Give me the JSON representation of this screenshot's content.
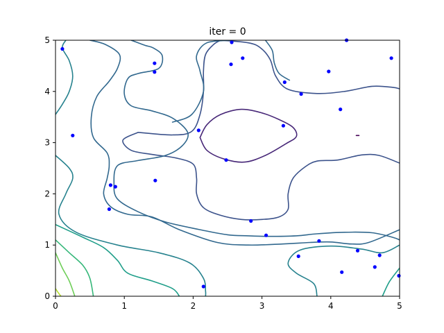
{
  "chart_data": {
    "type": "scatter",
    "title": "iter = 0",
    "xlabel": "",
    "ylabel": "",
    "xlim": [
      0,
      5
    ],
    "ylim": [
      0,
      5
    ],
    "x_ticks": [
      "0",
      "1",
      "2",
      "3",
      "4",
      "5"
    ],
    "y_ticks": [
      "0",
      "1",
      "2",
      "3",
      "4",
      "5"
    ],
    "grid": false,
    "legend": "none",
    "point_color": "#0000ff",
    "points": [
      {
        "x": 0.1,
        "y": 4.83
      },
      {
        "x": 0.25,
        "y": 3.14
      },
      {
        "x": 0.78,
        "y": 1.7
      },
      {
        "x": 0.8,
        "y": 2.17
      },
      {
        "x": 0.87,
        "y": 2.14
      },
      {
        "x": 1.44,
        "y": 4.55
      },
      {
        "x": 1.44,
        "y": 4.38
      },
      {
        "x": 1.45,
        "y": 2.26
      },
      {
        "x": 2.08,
        "y": 3.24
      },
      {
        "x": 2.15,
        "y": 0.19
      },
      {
        "x": 2.48,
        "y": 2.66
      },
      {
        "x": 2.55,
        "y": 4.53
      },
      {
        "x": 2.56,
        "y": 4.96
      },
      {
        "x": 2.72,
        "y": 4.65
      },
      {
        "x": 2.84,
        "y": 1.47
      },
      {
        "x": 3.06,
        "y": 1.19
      },
      {
        "x": 3.31,
        "y": 3.33
      },
      {
        "x": 3.33,
        "y": 4.18
      },
      {
        "x": 3.53,
        "y": 0.78
      },
      {
        "x": 3.57,
        "y": 3.95
      },
      {
        "x": 3.83,
        "y": 1.08
      },
      {
        "x": 3.97,
        "y": 4.39
      },
      {
        "x": 4.14,
        "y": 3.65
      },
      {
        "x": 4.16,
        "y": 0.47
      },
      {
        "x": 4.23,
        "y": 5.0
      },
      {
        "x": 4.39,
        "y": 0.89
      },
      {
        "x": 4.64,
        "y": 0.57
      },
      {
        "x": 4.71,
        "y": 0.8
      },
      {
        "x": 4.88,
        "y": 4.65
      },
      {
        "x": 4.99,
        "y": 0.4
      }
    ],
    "contours": [
      {
        "level": 1,
        "color": "#440154",
        "points": [
          [
            4.37,
            3.14
          ],
          [
            4.41,
            3.14
          ]
        ]
      },
      {
        "level": 2,
        "color": "#482878",
        "points": [
          [
            2.1,
            3.1
          ],
          [
            2.2,
            3.35
          ],
          [
            2.4,
            3.55
          ],
          [
            2.7,
            3.65
          ],
          [
            3.0,
            3.58
          ],
          [
            3.25,
            3.45
          ],
          [
            3.45,
            3.3
          ],
          [
            3.5,
            3.12
          ],
          [
            3.35,
            2.98
          ],
          [
            3.05,
            2.75
          ],
          [
            2.75,
            2.62
          ],
          [
            2.45,
            2.68
          ],
          [
            2.2,
            2.85
          ],
          [
            2.1,
            3.1
          ]
        ]
      },
      {
        "level": 3,
        "color": "#3b528b",
        "points": [
          [
            1.2,
            3.2
          ],
          [
            1.7,
            3.15
          ],
          [
            1.98,
            3.22
          ],
          [
            2.1,
            3.55
          ],
          [
            2.15,
            4.0
          ],
          [
            2.15,
            4.4
          ],
          [
            2.18,
            4.72
          ],
          [
            2.3,
            4.92
          ],
          [
            2.4,
            5.0
          ]
        ]
      },
      {
        "level": 3,
        "color": "#3b528b",
        "points": [
          [
            2.4,
            5.0
          ],
          [
            2.8,
            4.95
          ],
          [
            2.98,
            4.85
          ],
          [
            3.12,
            4.62
          ],
          [
            3.2,
            4.3
          ],
          [
            3.38,
            4.04
          ],
          [
            3.8,
            3.96
          ],
          [
            4.2,
            4.0
          ],
          [
            4.6,
            4.1
          ],
          [
            4.9,
            4.08
          ],
          [
            5.0,
            4.05
          ]
        ]
      },
      {
        "level": 3,
        "color": "#3b528b",
        "points": [
          [
            5.0,
            2.6
          ],
          [
            4.7,
            2.75
          ],
          [
            4.45,
            2.76
          ],
          [
            4.1,
            2.66
          ],
          [
            3.8,
            2.64
          ],
          [
            3.62,
            2.52
          ],
          [
            3.45,
            2.3
          ],
          [
            3.38,
            2.0
          ],
          [
            3.38,
            1.7
          ],
          [
            3.25,
            1.55
          ],
          [
            3.0,
            1.5
          ],
          [
            2.7,
            1.5
          ],
          [
            2.4,
            1.58
          ],
          [
            2.15,
            1.73
          ],
          [
            2.05,
            2.0
          ],
          [
            2.05,
            2.3
          ],
          [
            2.0,
            2.58
          ],
          [
            1.75,
            2.7
          ],
          [
            1.4,
            2.77
          ],
          [
            1.1,
            2.85
          ],
          [
            0.98,
            3.05
          ],
          [
            1.2,
            3.2
          ]
        ]
      },
      {
        "level": 4,
        "color": "#31688e",
        "points": [
          [
            0.5,
            5.0
          ],
          [
            0.72,
            4.92
          ],
          [
            0.93,
            4.72
          ],
          [
            0.9,
            4.45
          ],
          [
            0.78,
            4.2
          ],
          [
            0.6,
            3.9
          ],
          [
            0.52,
            3.5
          ],
          [
            0.55,
            3.1
          ],
          [
            0.75,
            2.8
          ],
          [
            0.78,
            2.55
          ],
          [
            0.75,
            2.3
          ],
          [
            0.7,
            2.0
          ],
          [
            0.8,
            1.75
          ],
          [
            1.05,
            1.6
          ],
          [
            1.4,
            1.55
          ],
          [
            1.8,
            1.3
          ],
          [
            2.35,
            1.05
          ],
          [
            2.8,
            1.0
          ],
          [
            3.3,
            1.02
          ],
          [
            3.7,
            1.05
          ],
          [
            4.0,
            1.06
          ],
          [
            4.3,
            1.02
          ],
          [
            4.55,
            1.05
          ],
          [
            5.0,
            1.3
          ]
        ]
      },
      {
        "level": 4,
        "color": "#31688e",
        "points": [
          [
            1.1,
            5.0
          ],
          [
            1.3,
            4.9
          ],
          [
            1.42,
            4.85
          ],
          [
            1.55,
            4.7
          ],
          [
            1.5,
            4.45
          ],
          [
            1.2,
            4.35
          ],
          [
            1.05,
            4.25
          ],
          [
            1.0,
            3.95
          ],
          [
            1.1,
            3.72
          ],
          [
            1.4,
            3.62
          ],
          [
            1.7,
            3.48
          ],
          [
            1.92,
            3.2
          ],
          [
            1.85,
            2.95
          ],
          [
            1.6,
            2.75
          ],
          [
            1.2,
            2.65
          ],
          [
            0.9,
            2.55
          ],
          [
            0.85,
            2.2
          ],
          [
            0.9,
            1.9
          ],
          [
            1.2,
            1.65
          ],
          [
            1.6,
            1.45
          ],
          [
            2.1,
            1.3
          ],
          [
            2.5,
            1.2
          ],
          [
            2.8,
            1.18
          ],
          [
            3.1,
            1.17
          ],
          [
            3.5,
            1.18
          ],
          [
            3.8,
            1.22
          ],
          [
            4.2,
            1.25
          ],
          [
            4.6,
            1.24
          ],
          [
            4.9,
            1.15
          ],
          [
            5.0,
            1.1
          ]
        ]
      },
      {
        "level": 4,
        "color": "#31688e",
        "points": [
          [
            2.55,
            5.0
          ],
          [
            2.2,
            4.95
          ],
          [
            2.05,
            4.7
          ],
          [
            2.1,
            4.4
          ],
          [
            2.15,
            4.0
          ],
          [
            1.98,
            3.55
          ],
          [
            1.7,
            3.4
          ]
        ]
      },
      {
        "level": 4,
        "color": "#31688e",
        "points": [
          [
            3.05,
            5.0
          ],
          [
            3.15,
            4.8
          ],
          [
            3.18,
            4.55
          ],
          [
            3.25,
            4.35
          ],
          [
            3.4,
            4.22
          ]
        ]
      },
      {
        "level": 5,
        "color": "#26828e",
        "points": [
          [
            0.15,
            5.0
          ],
          [
            0.1,
            4.85
          ],
          [
            0.2,
            4.6
          ],
          [
            0.25,
            4.3
          ],
          [
            0.2,
            4.0
          ],
          [
            0.1,
            3.75
          ],
          [
            0.0,
            3.55
          ]
        ]
      },
      {
        "level": 5,
        "color": "#26828e",
        "points": [
          [
            0.0,
            2.75
          ],
          [
            0.2,
            2.5
          ],
          [
            0.25,
            2.3
          ],
          [
            0.15,
            2.0
          ],
          [
            0.05,
            1.6
          ],
          [
            0.3,
            1.25
          ],
          [
            0.9,
            1.0
          ],
          [
            1.5,
            0.85
          ],
          [
            1.95,
            0.65
          ],
          [
            2.15,
            0.35
          ],
          [
            2.18,
            0.1
          ],
          [
            2.18,
            0.0
          ]
        ]
      },
      {
        "level": 5,
        "color": "#26828e",
        "points": [
          [
            3.8,
            0.0
          ],
          [
            3.75,
            0.25
          ],
          [
            3.5,
            0.45
          ],
          [
            3.38,
            0.65
          ],
          [
            3.55,
            0.9
          ],
          [
            4.0,
            0.98
          ],
          [
            4.45,
            0.92
          ],
          [
            4.75,
            0.85
          ],
          [
            5.0,
            1.0
          ]
        ]
      },
      {
        "level": 6,
        "color": "#1f9e89",
        "points": [
          [
            0.0,
            1.4
          ],
          [
            0.4,
            1.15
          ],
          [
            0.7,
            0.95
          ],
          [
            0.9,
            0.7
          ],
          [
            1.05,
            0.45
          ],
          [
            1.4,
            0.3
          ],
          [
            1.7,
            0.15
          ],
          [
            1.8,
            0.0
          ]
        ]
      },
      {
        "level": 6,
        "color": "#1f9e89",
        "points": [
          [
            4.75,
            0.0
          ],
          [
            4.85,
            0.28
          ],
          [
            5.0,
            0.55
          ]
        ]
      },
      {
        "level": 7,
        "color": "#35b779",
        "points": [
          [
            0.0,
            1.1
          ],
          [
            0.2,
            0.85
          ],
          [
            0.4,
            0.6
          ],
          [
            0.5,
            0.35
          ],
          [
            0.55,
            0.0
          ]
        ]
      },
      {
        "level": 8,
        "color": "#6ece58",
        "points": [
          [
            0.0,
            0.85
          ],
          [
            0.1,
            0.55
          ],
          [
            0.2,
            0.3
          ],
          [
            0.28,
            0.0
          ]
        ]
      },
      {
        "level": 9,
        "color": "#b5de2b",
        "points": [
          [
            0.0,
            0.15
          ],
          [
            0.05,
            0.05
          ],
          [
            0.08,
            0.0
          ]
        ]
      }
    ]
  }
}
